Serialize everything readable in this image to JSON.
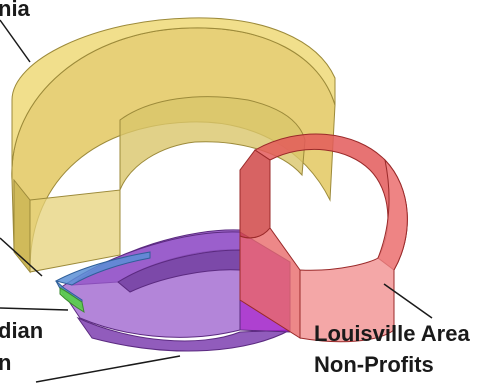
{
  "chart_data": {
    "type": "pie",
    "style": "3d-donut-exploded-translucent",
    "slices": [
      {
        "label": "…nia",
        "color": "#e8cf5a"
      },
      {
        "label": "Louisville Area Non-Profits",
        "color": "#e04848"
      },
      {
        "label": "…n",
        "color": "#8a3fb8"
      },
      {
        "label": "…dian",
        "color": "#3f8fd1"
      },
      {
        "label": "",
        "color": "#59c24a"
      },
      {
        "label": "",
        "color": "#8a3fb8"
      }
    ]
  },
  "labels": {
    "top_left": "nia",
    "right_line1": "Louisville Area",
    "right_line2": "Non-Profits",
    "bottom_left_line1": "dian",
    "bottom_left_line2": "n"
  }
}
